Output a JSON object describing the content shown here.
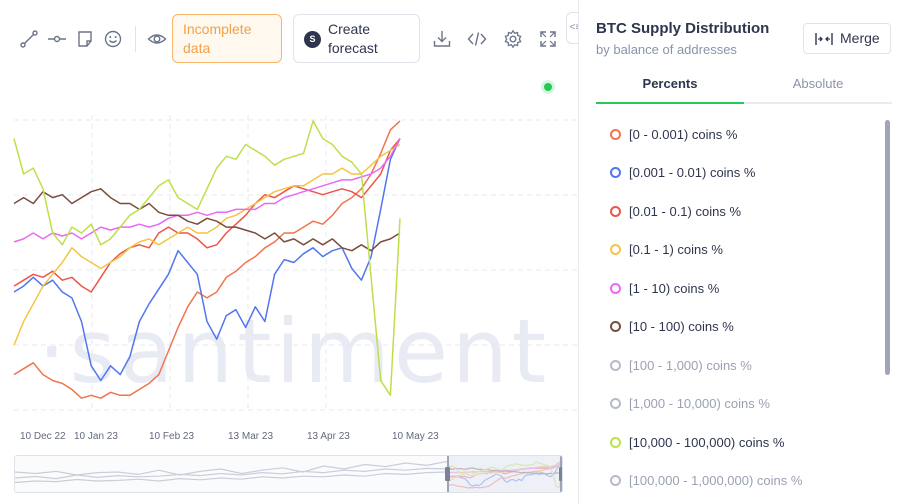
{
  "toolbar": {
    "icons": [
      "line-draw-icon",
      "segment-icon",
      "note-icon",
      "emoji-icon",
      "eye-icon"
    ],
    "incomplete_label": "Incomplete data",
    "forecast_label": "Create forecast",
    "right_icons": [
      "download-icon",
      "embed-code-icon",
      "settings-icon",
      "fullscreen-icon"
    ]
  },
  "watermark": "·santiment",
  "chart_data": {
    "type": "line",
    "title": "BTC Supply Distribution",
    "x_ticks": [
      "10 Dec 22",
      "10 Jan 23",
      "10 Feb 23",
      "13 Mar 23",
      "13 Apr 23",
      "10 May 23"
    ],
    "x_range": [
      "2022-11-28",
      "2023-05-10"
    ],
    "grid": true,
    "series": [
      {
        "name": "[0 - 0.001) coins %",
        "color": "#f0744e",
        "values": [
          0.12,
          0.14,
          0.16,
          0.12,
          0.1,
          0.09,
          0.07,
          0.04,
          0.05,
          0.04,
          0.06,
          0.05,
          0.05,
          0.07,
          0.09,
          0.12,
          0.2,
          0.28,
          0.35,
          0.4,
          0.38,
          0.4,
          0.45,
          0.47,
          0.5,
          0.52,
          0.55,
          0.57,
          0.6,
          0.6,
          0.62,
          0.64,
          0.63,
          0.66,
          0.7,
          0.72,
          0.75,
          0.8,
          0.87,
          0.95,
          0.98
        ]
      },
      {
        "name": "[0.001 - 0.01) coins %",
        "color": "#5275f0",
        "values": [
          0.4,
          0.42,
          0.45,
          0.42,
          0.44,
          0.4,
          0.38,
          0.3,
          0.15,
          0.1,
          0.15,
          0.12,
          0.18,
          0.3,
          0.36,
          0.41,
          0.46,
          0.54,
          0.5,
          0.46,
          0.3,
          0.24,
          0.32,
          0.34,
          0.28,
          0.35,
          0.3,
          0.46,
          0.51,
          0.5,
          0.53,
          0.55,
          0.52,
          0.54,
          0.55,
          0.48,
          0.44,
          0.52,
          0.68,
          0.85,
          0.92
        ]
      },
      {
        "name": "[0.01 - 0.1) coins %",
        "color": "#ee5448",
        "values": [
          0.42,
          0.44,
          0.46,
          0.45,
          0.47,
          0.44,
          0.45,
          0.42,
          0.4,
          0.45,
          0.5,
          0.53,
          0.55,
          0.56,
          0.55,
          0.6,
          0.62,
          0.6,
          0.6,
          0.58,
          0.55,
          0.56,
          0.6,
          0.63,
          0.66,
          0.7,
          0.73,
          0.72,
          0.74,
          0.76,
          0.75,
          0.74,
          0.73,
          0.74,
          0.75,
          0.74,
          0.72,
          0.76,
          0.8,
          0.88,
          0.92
        ]
      },
      {
        "name": "[0.1 - 1) coins %",
        "color": "#f5c442",
        "values": [
          0.22,
          0.3,
          0.36,
          0.42,
          0.46,
          0.5,
          0.55,
          0.52,
          0.5,
          0.48,
          0.5,
          0.52,
          0.55,
          0.57,
          0.58,
          0.56,
          0.58,
          0.6,
          0.62,
          0.6,
          0.6,
          0.62,
          0.65,
          0.66,
          0.68,
          0.7,
          0.72,
          0.74,
          0.75,
          0.76,
          0.76,
          0.78,
          0.8,
          0.8,
          0.82,
          0.8,
          0.8,
          0.83,
          0.86,
          0.88,
          0.9
        ]
      },
      {
        "name": "[1 - 10) coins %",
        "color": "#e96af0",
        "values": [
          0.57,
          0.58,
          0.6,
          0.58,
          0.6,
          0.59,
          0.6,
          0.58,
          0.6,
          0.62,
          0.61,
          0.62,
          0.62,
          0.63,
          0.62,
          0.63,
          0.65,
          0.66,
          0.66,
          0.67,
          0.66,
          0.67,
          0.67,
          0.68,
          0.68,
          0.68,
          0.7,
          0.7,
          0.72,
          0.73,
          0.74,
          0.75,
          0.76,
          0.77,
          0.78,
          0.78,
          0.79,
          0.8,
          0.82,
          0.86,
          0.92
        ]
      },
      {
        "name": "[10 - 100) coins %",
        "color": "#7a4d3c",
        "values": [
          0.7,
          0.72,
          0.7,
          0.74,
          0.72,
          0.73,
          0.7,
          0.72,
          0.74,
          0.75,
          0.72,
          0.7,
          0.7,
          0.68,
          0.7,
          0.67,
          0.66,
          0.66,
          0.64,
          0.63,
          0.65,
          0.64,
          0.62,
          0.62,
          0.61,
          0.6,
          0.58,
          0.6,
          0.57,
          0.58,
          0.56,
          0.58,
          0.56,
          0.58,
          0.55,
          0.54,
          0.56,
          0.54,
          0.57,
          0.58,
          0.6
        ]
      },
      {
        "name": "[10,000 - 100,000) coins %",
        "color": "#bde04a",
        "values": [
          0.92,
          0.8,
          0.82,
          0.75,
          0.6,
          0.56,
          0.62,
          0.6,
          0.63,
          0.56,
          0.58,
          0.62,
          0.66,
          0.68,
          0.72,
          0.76,
          0.78,
          0.72,
          0.7,
          0.68,
          0.75,
          0.82,
          0.86,
          0.85,
          0.9,
          0.88,
          0.86,
          0.83,
          0.85,
          0.86,
          0.87,
          0.98,
          0.92,
          0.9,
          0.86,
          0.84,
          0.8,
          0.45,
          0.1,
          0.05,
          0.65
        ]
      }
    ]
  },
  "panel": {
    "title": "BTC Supply Distribution",
    "subtitle": "by balance of addresses",
    "merge_label": "Merge",
    "tabs": [
      {
        "label": "Percents"
      },
      {
        "label": "Absolute"
      }
    ],
    "metrics": [
      {
        "label": "[0 - 0.001) coins %",
        "color": "#f0744e",
        "active": true
      },
      {
        "label": "[0.001 - 0.01) coins %",
        "color": "#5275f0",
        "active": true
      },
      {
        "label": "[0.01 - 0.1) coins %",
        "color": "#ee5448",
        "active": true
      },
      {
        "label": "[0.1 - 1) coins %",
        "color": "#f5c442",
        "active": true
      },
      {
        "label": "[1 - 10) coins %",
        "color": "#e96af0",
        "active": true
      },
      {
        "label": "[10 - 100) coins %",
        "color": "#7a4d3c",
        "active": true
      },
      {
        "label": "[100 - 1,000) coins %",
        "color": "#b5bbc9",
        "active": false
      },
      {
        "label": "[1,000 - 10,000) coins %",
        "color": "#b5bbc9",
        "active": false
      },
      {
        "label": "[10,000 - 100,000) coins %",
        "color": "#bde04a",
        "active": true
      },
      {
        "label": "[100,000 - 1,000,000) coins %",
        "color": "#b5bbc9",
        "active": false
      }
    ]
  }
}
